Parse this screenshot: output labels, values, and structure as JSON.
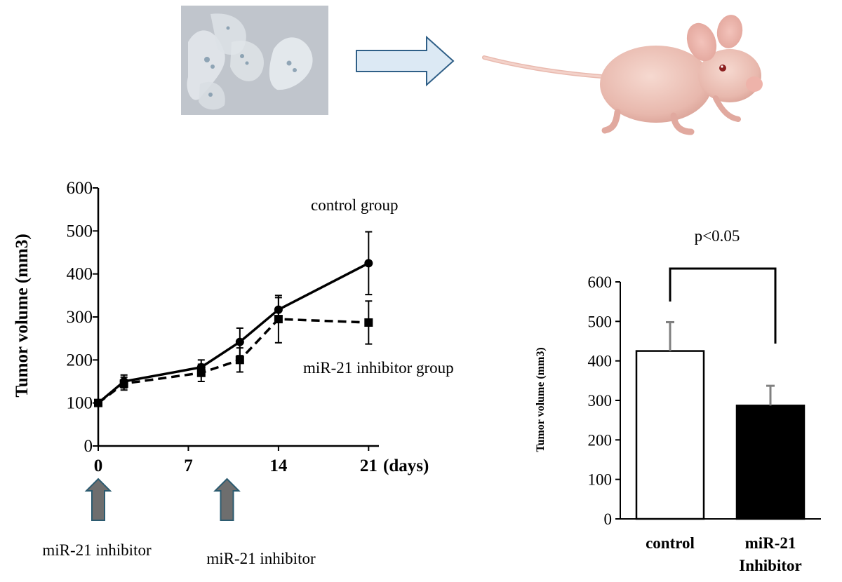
{
  "figure": {
    "arrow_fill": "#dce9f4",
    "arrow_stroke": "#2f5f87",
    "inhibitor_arrow_fill": "#6e6e6e",
    "inhibitor_arrow_stroke": "#2c5b70"
  },
  "chart_data": [
    {
      "type": "line",
      "ylabel": "Tumor volume (mm3)",
      "x_unit_label": "(days)",
      "ylim": [
        0,
        600
      ],
      "yticks": [
        0,
        100,
        200,
        300,
        400,
        500,
        600
      ],
      "xticks": [
        0,
        7,
        14,
        21
      ],
      "xlim": [
        0,
        21
      ],
      "series": [
        {
          "name": "control group",
          "marker": "circle",
          "dash": "solid",
          "points": [
            {
              "x": 0,
              "y": 100,
              "err": 0
            },
            {
              "x": 2,
              "y": 150,
              "err": 15
            },
            {
              "x": 8,
              "y": 183,
              "err": 17
            },
            {
              "x": 11,
              "y": 242,
              "err": 32
            },
            {
              "x": 14,
              "y": 317,
              "err": 28
            },
            {
              "x": 21,
              "y": 425,
              "err": 73
            }
          ]
        },
        {
          "name": "miR-21 inhibitor group",
          "marker": "square",
          "dash": "dashed",
          "points": [
            {
              "x": 0,
              "y": 100,
              "err": 0
            },
            {
              "x": 2,
              "y": 145,
              "err": 15
            },
            {
              "x": 8,
              "y": 170,
              "err": 20
            },
            {
              "x": 11,
              "y": 200,
              "err": 28
            },
            {
              "x": 14,
              "y": 295,
              "err": 55
            },
            {
              "x": 21,
              "y": 287,
              "err": 50
            }
          ]
        }
      ],
      "treatment_days": [
        0,
        10
      ],
      "treatment_labels": [
        "miR-21 inhibitor",
        "miR-21 inhibitor"
      ]
    },
    {
      "type": "bar",
      "ylabel": "Tumor volume (mm3)",
      "ylim": [
        0,
        600
      ],
      "yticks": [
        0,
        100,
        200,
        300,
        400,
        500,
        600
      ],
      "categories": [
        "control",
        "miR-21 Inhibitor"
      ],
      "category_lines": [
        [
          "control"
        ],
        [
          "miR-21",
          "Inhibitor"
        ]
      ],
      "values": [
        425,
        287
      ],
      "errors": [
        73,
        50
      ],
      "bar_colors": [
        "#ffffff",
        "#000000"
      ],
      "error_color": "#808080",
      "significance": "p<0.05"
    }
  ]
}
